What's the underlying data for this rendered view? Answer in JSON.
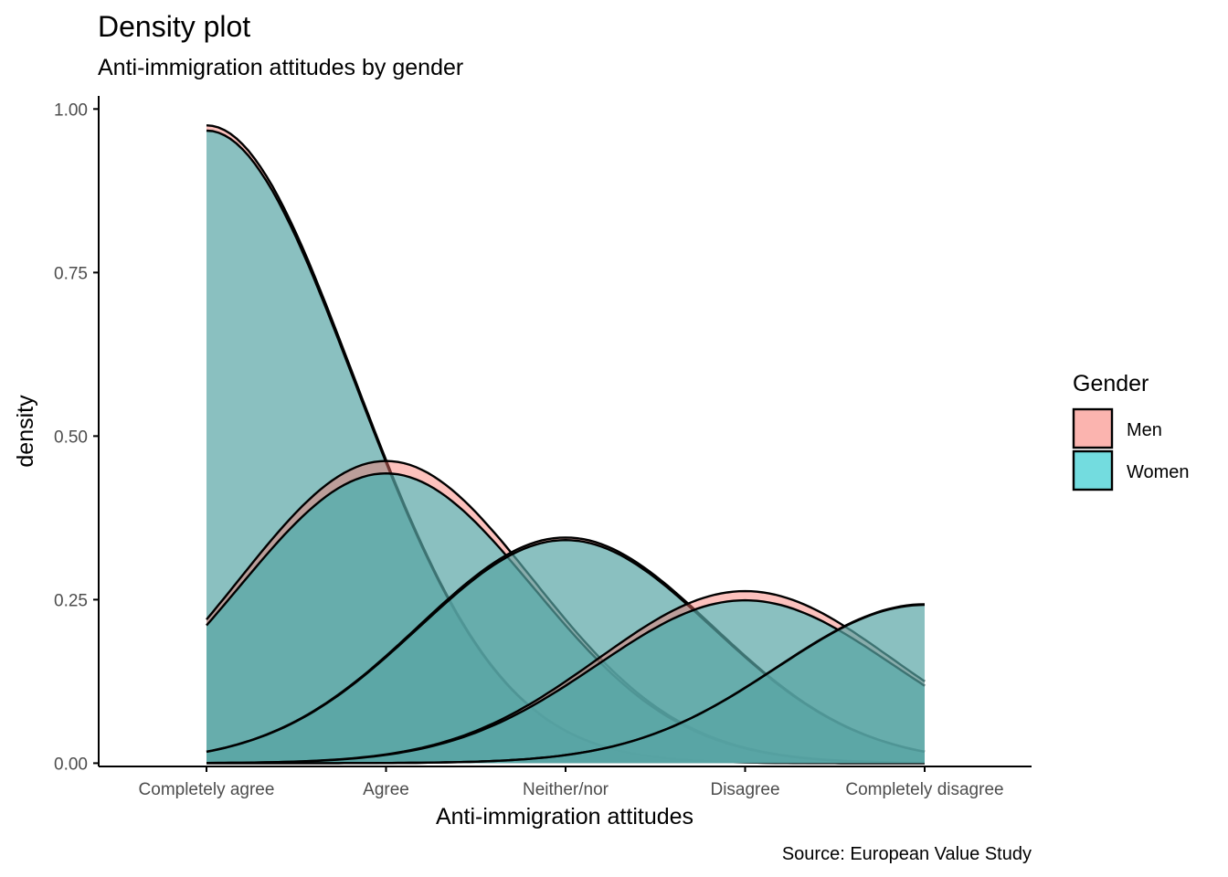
{
  "chart_data": {
    "type": "area",
    "title": "Density plot",
    "subtitle": "Anti-immigration attitudes by gender",
    "xlabel": "Anti-immigration attitudes",
    "ylabel": "density",
    "caption": "Source: European Value Study",
    "categories": [
      "Completely agree",
      "Agree",
      "Neither/nor",
      "Disagree",
      "Completely disagree"
    ],
    "ylim": [
      -0.005,
      1.02
    ],
    "yticks": [
      0.0,
      0.25,
      0.5,
      0.75,
      1.0
    ],
    "ytick_labels": [
      "0.00",
      "0.25",
      "0.50",
      "0.75",
      "1.00"
    ],
    "grid": false,
    "legend": {
      "title": "Gender",
      "position": "right",
      "entries": [
        {
          "label": "Men",
          "color": "#F8766D"
        },
        {
          "label": "Women",
          "color": "#00BFC4"
        }
      ]
    },
    "fill_alpha": 0.45,
    "curve_sd": 0.82,
    "series": [
      {
        "group": "Men",
        "center": 1,
        "peak": 0.975
      },
      {
        "group": "Women",
        "center": 1,
        "peak": 0.967
      },
      {
        "group": "Men",
        "center": 2,
        "peak": 0.462
      },
      {
        "group": "Women",
        "center": 2,
        "peak": 0.443
      },
      {
        "group": "Men",
        "center": 3,
        "peak": 0.345
      },
      {
        "group": "Women",
        "center": 3,
        "peak": 0.341
      },
      {
        "group": "Men",
        "center": 4,
        "peak": 0.263
      },
      {
        "group": "Women",
        "center": 4,
        "peak": 0.249
      },
      {
        "group": "Men",
        "center": 5,
        "peak": 0.243
      },
      {
        "group": "Women",
        "center": 5,
        "peak": 0.242
      }
    ]
  }
}
